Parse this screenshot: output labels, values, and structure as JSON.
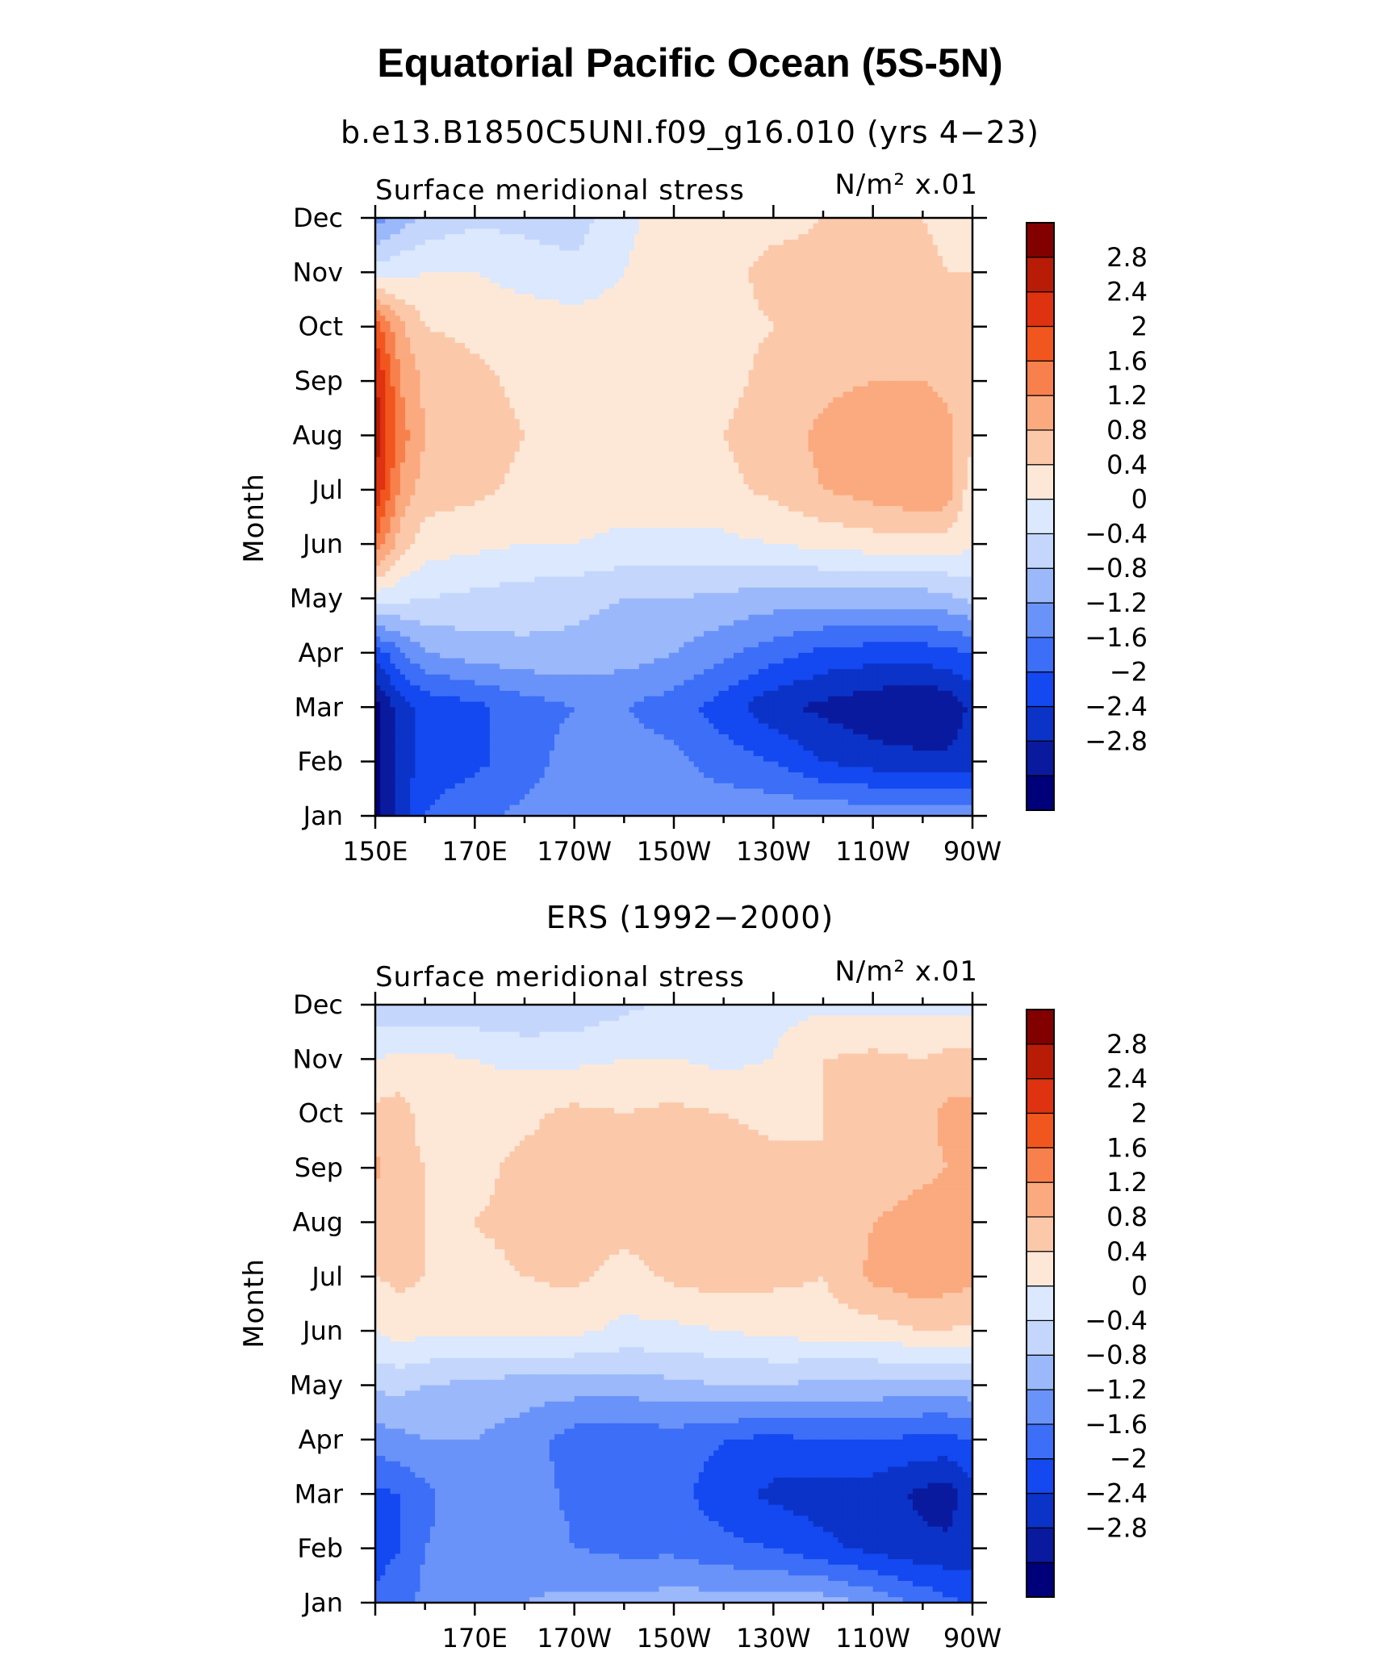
{
  "figure": {
    "title": "Equatorial Pacific Ocean (5S-5N)"
  },
  "colors": {
    "levels": [
      "#00007a",
      "#0a1a9e",
      "#0b33c8",
      "#1448f0",
      "#3c6ef8",
      "#6a93fa",
      "#9bb8fb",
      "#c4d6fc",
      "#dbe8fd",
      "#fde8d8",
      "#fcc8aa",
      "#fba97e",
      "#f8804c",
      "#f2561f",
      "#de3210",
      "#b81c06",
      "#830000"
    ]
  },
  "chart_data": [
    {
      "type": "heatmap",
      "subtitle": "b.e13.B1850C5UNI.f09_g16.010 (yrs 4−23)",
      "variable_label": "Surface meridional stress",
      "units_label": "N/m² x.01",
      "ylabel": "Month",
      "x_ticks": [
        "150E",
        "170E",
        "170W",
        "150W",
        "130W",
        "110W",
        "90W"
      ],
      "x_tick_values": [
        150,
        170,
        190,
        210,
        230,
        250,
        270
      ],
      "xlim": [
        150,
        270
      ],
      "y_ticks": [
        "Jan",
        "Feb",
        "Mar",
        "Apr",
        "May",
        "Jun",
        "Jul",
        "Aug",
        "Sep",
        "Oct",
        "Nov",
        "Dec"
      ],
      "colorbar_labels": [
        "2.8",
        "2.4",
        "2",
        "1.6",
        "1.2",
        "0.8",
        "0.4",
        "0",
        "−0.4",
        "−0.8",
        "−1.2",
        "−1.6",
        "−2",
        "−2.4",
        "−2.8"
      ],
      "colorbar_levels": [
        -2.8,
        -2.4,
        -2,
        -1.6,
        -1.2,
        -0.8,
        -0.4,
        0,
        0.4,
        0.8,
        1.2,
        1.6,
        2,
        2.4,
        2.8
      ],
      "x": [
        150,
        155,
        160,
        170,
        180,
        190,
        200,
        210,
        220,
        230,
        240,
        250,
        260,
        265,
        270
      ],
      "months": [
        "Jan",
        "Feb",
        "Mar",
        "Apr",
        "May",
        "Jun",
        "Jul",
        "Aug",
        "Sep",
        "Oct",
        "Nov",
        "Dec"
      ],
      "z": [
        [
          -3.0,
          -2.2,
          -1.6,
          -1.3,
          -1.1,
          -1.0,
          -1.0,
          -1.0,
          -0.9,
          -0.9,
          -0.9,
          -0.9,
          -0.9,
          -0.9,
          -1.0
        ],
        [
          -3.0,
          -2.3,
          -1.8,
          -1.7,
          -1.4,
          -1.0,
          -1.0,
          -1.1,
          -1.4,
          -1.6,
          -2.0,
          -2.2,
          -2.3,
          -2.3,
          -2.2
        ],
        [
          -3.0,
          -2.2,
          -1.9,
          -1.7,
          -1.4,
          -1.2,
          -1.2,
          -1.4,
          -1.8,
          -2.3,
          -2.5,
          -2.7,
          -2.8,
          -2.7,
          -2.3
        ],
        [
          -1.8,
          -1.3,
          -0.8,
          -0.6,
          -0.5,
          -0.5,
          -0.6,
          -0.8,
          -1.1,
          -1.4,
          -1.7,
          -1.8,
          -1.8,
          -1.7,
          -1.6
        ],
        [
          0.2,
          0.1,
          0.0,
          -0.1,
          -0.2,
          -0.3,
          -0.4,
          -0.4,
          -0.5,
          -0.6,
          -0.6,
          -0.6,
          -0.6,
          -0.5,
          -0.3
        ],
        [
          1.9,
          1.0,
          0.6,
          0.5,
          0.4,
          0.4,
          0.3,
          0.3,
          0.3,
          0.4,
          0.5,
          0.6,
          0.6,
          0.6,
          0.5
        ],
        [
          2.8,
          1.5,
          1.0,
          0.9,
          0.7,
          0.6,
          0.6,
          0.6,
          0.7,
          0.9,
          1.2,
          1.4,
          1.6,
          1.5,
          0.5
        ],
        [
          3.0,
          1.8,
          1.2,
          1.0,
          0.8,
          0.7,
          0.6,
          0.6,
          0.8,
          1.0,
          1.3,
          1.5,
          1.4,
          1.3,
          0.9
        ],
        [
          2.9,
          1.6,
          1.1,
          0.9,
          0.7,
          0.6,
          0.6,
          0.6,
          0.7,
          0.9,
          1.1,
          1.2,
          1.2,
          1.1,
          1.0
        ],
        [
          2.2,
          1.3,
          0.8,
          0.7,
          0.7,
          0.6,
          0.6,
          0.6,
          0.7,
          0.8,
          0.9,
          0.9,
          0.9,
          0.9,
          0.9
        ],
        [
          0.2,
          0.3,
          0.4,
          0.4,
          0.2,
          0.1,
          0.4,
          0.6,
          0.7,
          0.9,
          0.9,
          0.9,
          0.9,
          0.8,
          0.8
        ],
        [
          -1.0,
          -0.6,
          -0.3,
          -0.1,
          -0.1,
          -0.2,
          0.3,
          0.6,
          0.7,
          0.7,
          0.8,
          0.8,
          0.8,
          0.7,
          0.6
        ]
      ]
    },
    {
      "type": "heatmap",
      "subtitle": "ERS (1992−2000)",
      "variable_label": "Surface meridional stress",
      "units_label": "N/m² x.01",
      "ylabel": "Month",
      "x_ticks": [
        "170E",
        "170W",
        "150W",
        "130W",
        "110W",
        "90W"
      ],
      "x_tick_values": [
        170,
        190,
        210,
        230,
        250,
        270
      ],
      "xlim": [
        150,
        270
      ],
      "y_ticks": [
        "Jan",
        "Feb",
        "Mar",
        "Apr",
        "May",
        "Jun",
        "Jul",
        "Aug",
        "Sep",
        "Oct",
        "Nov",
        "Dec"
      ],
      "colorbar_labels": [
        "2.8",
        "2.4",
        "2",
        "1.6",
        "1.2",
        "0.8",
        "0.4",
        "0",
        "−0.4",
        "−0.8",
        "−1.2",
        "−1.6",
        "−2",
        "−2.4",
        "−2.8"
      ],
      "colorbar_levels": [
        -2.8,
        -2.4,
        -2,
        -1.6,
        -1.2,
        -0.8,
        -0.4,
        0,
        0.4,
        0.8,
        1.2,
        1.6,
        2,
        2.4,
        2.8
      ],
      "x": [
        150,
        155,
        160,
        170,
        180,
        190,
        200,
        210,
        220,
        230,
        240,
        250,
        260,
        265,
        270
      ],
      "months": [
        "Jan",
        "Feb",
        "Mar",
        "Apr",
        "May",
        "Jun",
        "Jul",
        "Aug",
        "Sep",
        "Oct",
        "Nov",
        "Dec"
      ],
      "z": [
        [
          -1.5,
          -1.3,
          -1.1,
          -0.9,
          -0.8,
          -0.7,
          -0.7,
          -0.6,
          -0.6,
          -0.6,
          -0.6,
          -0.9,
          -1.3,
          -1.5,
          -1.7
        ],
        [
          -1.8,
          -1.6,
          -1.2,
          -1.0,
          -0.9,
          -1.2,
          -1.3,
          -1.3,
          -1.5,
          -1.6,
          -1.9,
          -2.1,
          -2.3,
          -2.3,
          -2.2
        ],
        [
          -1.7,
          -1.6,
          -1.3,
          -0.9,
          -1.0,
          -1.3,
          -1.5,
          -1.5,
          -1.8,
          -2.1,
          -2.2,
          -2.2,
          -2.5,
          -2.6,
          -2.1
        ],
        [
          -1.0,
          -0.9,
          -0.8,
          -0.8,
          -1.0,
          -1.4,
          -1.5,
          -1.4,
          -1.6,
          -1.7,
          -1.6,
          -1.6,
          -1.7,
          -1.7,
          -1.6
        ],
        [
          -0.3,
          -0.3,
          -0.4,
          -0.5,
          -0.6,
          -0.6,
          -0.6,
          -0.5,
          -0.4,
          -0.4,
          -0.5,
          -0.5,
          -0.6,
          -0.6,
          -0.5
        ],
        [
          0.4,
          0.6,
          0.5,
          0.5,
          0.5,
          0.5,
          0.3,
          0.3,
          0.4,
          0.5,
          0.6,
          0.6,
          0.8,
          0.8,
          0.7
        ],
        [
          0.8,
          0.9,
          0.8,
          0.7,
          0.8,
          0.9,
          0.6,
          0.9,
          1.0,
          0.9,
          0.8,
          1.3,
          1.5,
          1.4,
          1.3
        ],
        [
          0.9,
          1.1,
          0.8,
          0.8,
          0.9,
          1.0,
          1.0,
          1.0,
          1.0,
          1.0,
          0.8,
          1.2,
          1.4,
          1.4,
          1.4
        ],
        [
          1.3,
          1.0,
          0.8,
          0.7,
          0.9,
          1.1,
          1.0,
          1.0,
          1.0,
          0.9,
          0.8,
          0.9,
          1.1,
          1.2,
          1.3
        ],
        [
          0.9,
          1.0,
          0.6,
          0.6,
          0.7,
          0.9,
          0.8,
          0.9,
          0.8,
          0.7,
          0.8,
          0.9,
          1.1,
          1.3,
          1.3
        ],
        [
          0.4,
          0.5,
          0.5,
          0.4,
          0.3,
          0.3,
          0.4,
          0.4,
          0.3,
          0.4,
          0.8,
          0.9,
          0.8,
          0.9,
          1.0
        ],
        [
          -0.3,
          -0.4,
          -0.3,
          -0.3,
          -0.4,
          -0.3,
          -0.1,
          0.1,
          0.2,
          0.3,
          0.3,
          0.3,
          0.3,
          0.3,
          0.2
        ]
      ]
    }
  ]
}
